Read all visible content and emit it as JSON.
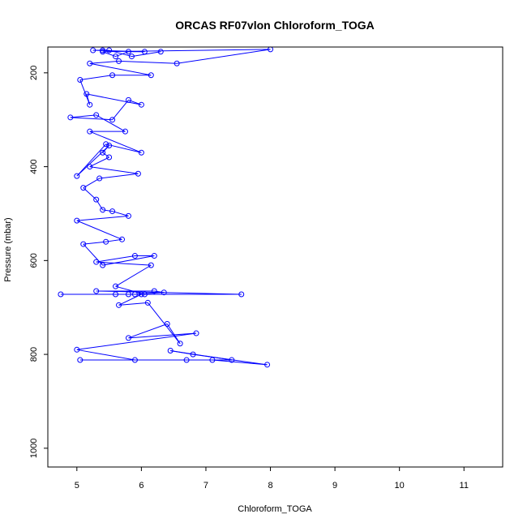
{
  "chart_data": {
    "type": "line",
    "title": "ORCAS RF07vlon Chloroform_TOGA",
    "xlabel": "Chloroform_TOGA",
    "ylabel": "Pressure (mbar)",
    "xlim": [
      4.55,
      11.6
    ],
    "ylim": [
      1040,
      145
    ],
    "y_reversed": true,
    "x_ticks": [
      5,
      6,
      7,
      8,
      9,
      10,
      11
    ],
    "y_ticks": [
      200,
      400,
      600,
      800,
      1000
    ],
    "grid": false,
    "series_color": "#0000ff",
    "marker": "open-circle",
    "series": [
      {
        "x": [
          5.05,
          6.7,
          7.1,
          7.95,
          6.8,
          6.45,
          7.4,
          5.9,
          5.0,
          6.85,
          5.8,
          6.4,
          6.6,
          6.1,
          5.65,
          6.0,
          5.8,
          5.6,
          4.75,
          7.55,
          5.3,
          6.2,
          6.35,
          5.9,
          6.05,
          5.6,
          6.15,
          5.3,
          5.9,
          6.2,
          5.4,
          5.1,
          5.45,
          5.7,
          5.0,
          5.8,
          5.55,
          5.4,
          5.3,
          5.1,
          5.35,
          5.95,
          5.2,
          5.5,
          5.4,
          5.5,
          5.0,
          5.45,
          6.0,
          5.2,
          5.75,
          5.3,
          4.9,
          5.55,
          5.8,
          6.0,
          5.15,
          5.2,
          5.05,
          5.55,
          6.15,
          5.2,
          5.65,
          6.55,
          8.0,
          5.4,
          5.6,
          5.8,
          6.05,
          5.25,
          5.4,
          5.5,
          5.85,
          6.3
        ],
        "y": [
          812,
          812,
          812,
          822,
          800,
          792,
          812,
          812,
          790,
          755,
          765,
          735,
          777,
          690,
          695,
          672,
          672,
          672,
          672,
          672,
          665,
          665,
          668,
          672,
          672,
          655,
          610,
          603,
          590,
          590,
          610,
          565,
          560,
          555,
          515,
          505,
          495,
          492,
          470,
          445,
          425,
          415,
          400,
          380,
          370,
          355,
          420,
          352,
          370,
          325,
          325,
          290,
          295,
          300,
          258,
          268,
          245,
          268,
          215,
          205,
          205,
          180,
          175,
          180,
          150,
          155,
          165,
          155,
          155,
          152,
          152,
          152,
          165,
          155
        ]
      }
    ]
  }
}
